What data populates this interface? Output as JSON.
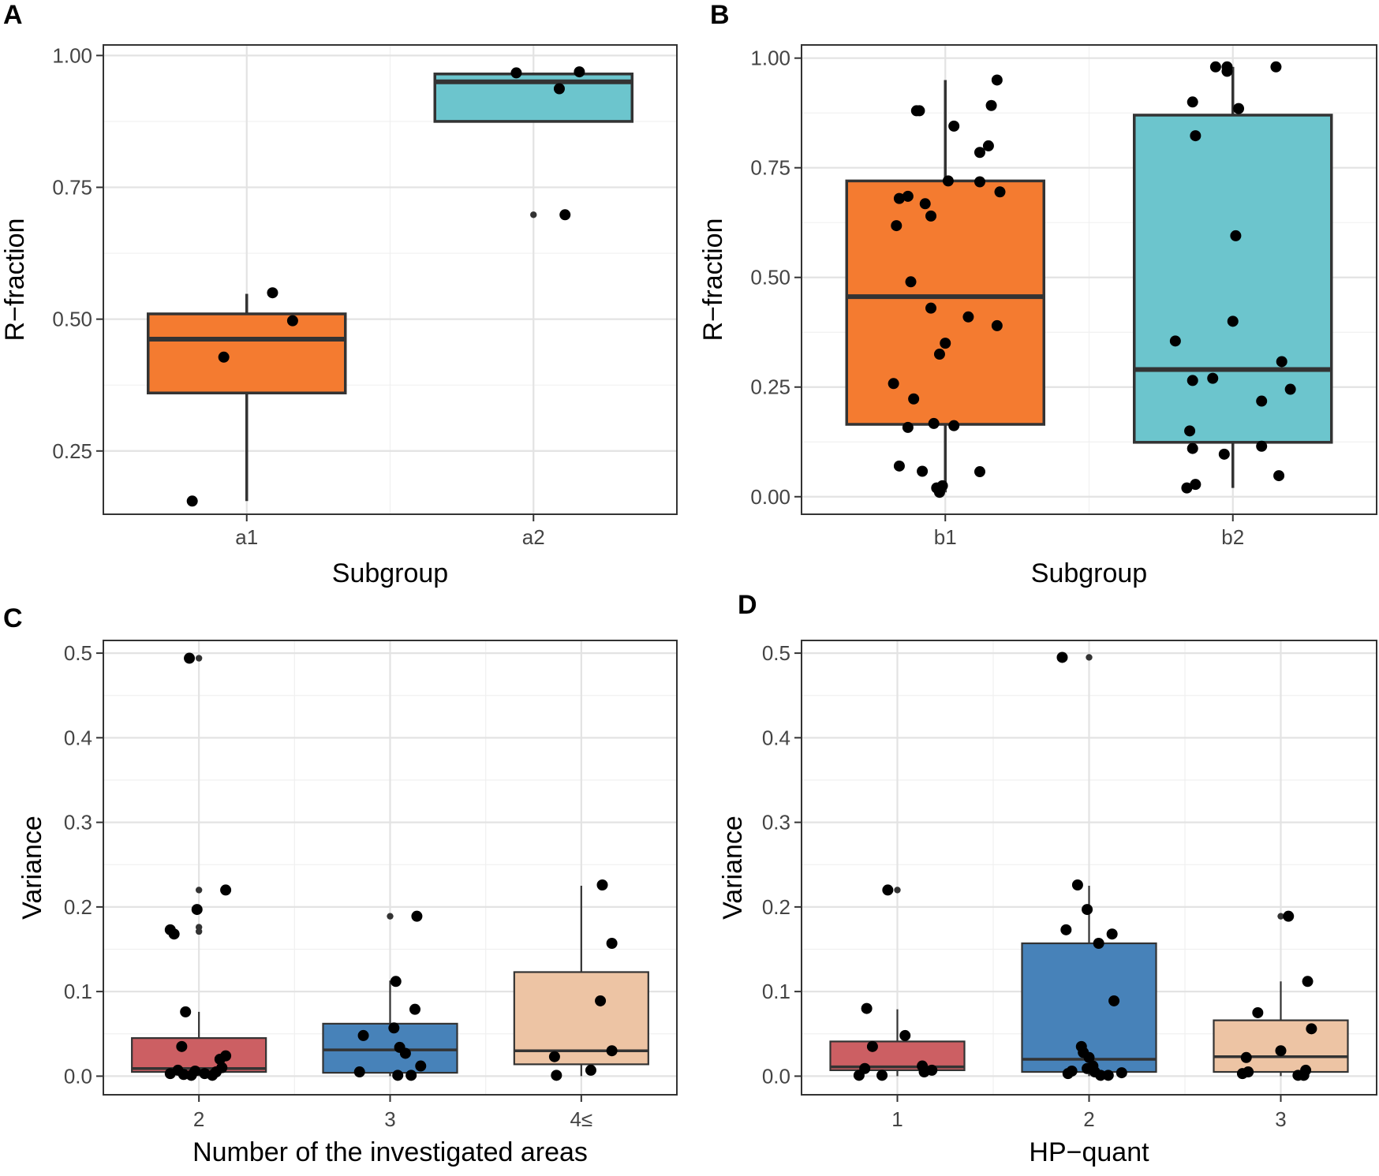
{
  "chart_data": [
    {
      "panel": "A",
      "type": "box",
      "xlabel": "Subgroup",
      "ylabel": "R−fraction",
      "ylim": [
        0.13,
        1.02
      ],
      "yticks": [
        0.25,
        0.5,
        0.75,
        1.0
      ],
      "ytick_labels": [
        "0.25",
        "0.50",
        "0.75",
        "1.00"
      ],
      "grid": true,
      "categories": [
        "a1",
        "a2"
      ],
      "series": [
        {
          "category": "a1",
          "color": "#F47B30",
          "q1": 0.36,
          "median": 0.462,
          "q3": 0.51,
          "whisker_low": 0.155,
          "whisker_high": 0.548,
          "points": [
            [
              -0.19,
              0.155
            ],
            [
              -0.08,
              0.428
            ],
            [
              0.09,
              0.55
            ],
            [
              0.16,
              0.497
            ]
          ],
          "outliers": []
        },
        {
          "category": "a2",
          "color": "#6CC5CD",
          "q1": 0.875,
          "median": 0.95,
          "q3": 0.965,
          "whisker_low": 0.875,
          "whisker_high": 0.965,
          "points": [
            [
              -0.06,
              0.967
            ],
            [
              0.09,
              0.937
            ],
            [
              0.16,
              0.969
            ],
            [
              0.11,
              0.698
            ]
          ],
          "outliers": [
            0.698
          ]
        }
      ]
    },
    {
      "panel": "B",
      "type": "box",
      "xlabel": "Subgroup",
      "ylabel": "R−fraction",
      "ylim": [
        -0.04,
        1.03
      ],
      "yticks": [
        0.0,
        0.25,
        0.5,
        0.75,
        1.0
      ],
      "ytick_labels": [
        "0.00",
        "0.25",
        "0.50",
        "0.75",
        "1.00"
      ],
      "grid": true,
      "categories": [
        "b1",
        "b2"
      ],
      "series": [
        {
          "category": "b1",
          "color": "#F47B30",
          "q1": 0.165,
          "median": 0.456,
          "q3": 0.72,
          "whisker_low": 0.01,
          "whisker_high": 0.95,
          "points": [
            [
              -0.1,
              0.88
            ],
            [
              -0.09,
              0.88
            ],
            [
              0.03,
              0.845
            ],
            [
              0.16,
              0.892
            ],
            [
              0.18,
              0.95
            ],
            [
              0.12,
              0.785
            ],
            [
              0.15,
              0.8
            ],
            [
              0.01,
              0.72
            ],
            [
              0.12,
              0.718
            ],
            [
              0.19,
              0.695
            ],
            [
              -0.13,
              0.685
            ],
            [
              -0.16,
              0.68
            ],
            [
              -0.07,
              0.668
            ],
            [
              -0.05,
              0.64
            ],
            [
              -0.17,
              0.618
            ],
            [
              -0.12,
              0.49
            ],
            [
              -0.05,
              0.43
            ],
            [
              0.08,
              0.41
            ],
            [
              0.18,
              0.39
            ],
            [
              0.0,
              0.35
            ],
            [
              -0.02,
              0.325
            ],
            [
              -0.18,
              0.258
            ],
            [
              -0.11,
              0.223
            ],
            [
              -0.04,
              0.167
            ],
            [
              0.03,
              0.162
            ],
            [
              -0.13,
              0.158
            ],
            [
              -0.16,
              0.07
            ],
            [
              -0.08,
              0.058
            ],
            [
              0.12,
              0.057
            ],
            [
              -0.01,
              0.025
            ],
            [
              -0.03,
              0.02
            ],
            [
              -0.02,
              0.01
            ]
          ],
          "outliers": []
        },
        {
          "category": "b2",
          "color": "#6CC5CD",
          "q1": 0.124,
          "median": 0.29,
          "q3": 0.87,
          "whisker_low": 0.02,
          "whisker_high": 0.98,
          "points": [
            [
              -0.06,
              0.98
            ],
            [
              -0.02,
              0.98
            ],
            [
              -0.02,
              0.97
            ],
            [
              0.15,
              0.98
            ],
            [
              -0.14,
              0.9
            ],
            [
              0.02,
              0.885
            ],
            [
              -0.13,
              0.823
            ],
            [
              0.01,
              0.595
            ],
            [
              0.0,
              0.4
            ],
            [
              -0.2,
              0.355
            ],
            [
              0.17,
              0.308
            ],
            [
              -0.14,
              0.265
            ],
            [
              -0.07,
              0.27
            ],
            [
              0.1,
              0.218
            ],
            [
              0.2,
              0.245
            ],
            [
              -0.15,
              0.15
            ],
            [
              -0.14,
              0.11
            ],
            [
              -0.03,
              0.097
            ],
            [
              0.1,
              0.115
            ],
            [
              0.16,
              0.048
            ],
            [
              -0.13,
              0.028
            ],
            [
              -0.16,
              0.02
            ]
          ],
          "outliers": []
        }
      ]
    },
    {
      "panel": "C",
      "type": "box",
      "xlabel": "Number of the investigated areas",
      "ylabel": "Variance",
      "ylim": [
        -0.022,
        0.515
      ],
      "yticks": [
        0.0,
        0.1,
        0.2,
        0.3,
        0.4,
        0.5
      ],
      "ytick_labels": [
        "0.0",
        "0.1",
        "0.2",
        "0.3",
        "0.4",
        "0.5"
      ],
      "grid": true,
      "categories": [
        "2",
        "3",
        "4≤"
      ],
      "series": [
        {
          "category": "2",
          "color": "#CC5F63",
          "q1": 0.005,
          "median": 0.009,
          "q3": 0.045,
          "whisker_low": 0.0,
          "whisker_high": 0.076,
          "points": [
            [
              -0.05,
              0.494
            ],
            [
              0.14,
              0.22
            ],
            [
              -0.01,
              0.197
            ],
            [
              -0.15,
              0.173
            ],
            [
              -0.13,
              0.168
            ],
            [
              -0.07,
              0.076
            ],
            [
              -0.09,
              0.035
            ],
            [
              -0.15,
              0.003
            ],
            [
              -0.08,
              0.002
            ],
            [
              -0.04,
              0.001
            ],
            [
              0.03,
              0.003
            ],
            [
              0.09,
              0.005
            ],
            [
              0.12,
              0.01
            ],
            [
              0.14,
              0.024
            ],
            [
              0.11,
              0.02
            ],
            [
              -0.11,
              0.007
            ],
            [
              -0.02,
              0.006
            ],
            [
              0.07,
              0.001
            ]
          ],
          "outliers": [
            0.494,
            0.22,
            0.176,
            0.171
          ]
        },
        {
          "category": "3",
          "color": "#4782B9",
          "q1": 0.004,
          "median": 0.031,
          "q3": 0.062,
          "whisker_low": 0.0,
          "whisker_high": 0.113,
          "points": [
            [
              0.14,
              0.189
            ],
            [
              0.03,
              0.112
            ],
            [
              0.13,
              0.079
            ],
            [
              0.02,
              0.057
            ],
            [
              -0.14,
              0.048
            ],
            [
              0.05,
              0.034
            ],
            [
              0.08,
              0.027
            ],
            [
              0.16,
              0.012
            ],
            [
              -0.16,
              0.005
            ],
            [
              0.04,
              0.001
            ],
            [
              0.11,
              0.001
            ]
          ],
          "outliers": [
            0.189
          ]
        },
        {
          "category": "4≤",
          "color": "#EDC4A4",
          "q1": 0.014,
          "median": 0.03,
          "q3": 0.123,
          "whisker_low": 0.0,
          "whisker_high": 0.225,
          "points": [
            [
              0.11,
              0.226
            ],
            [
              0.16,
              0.157
            ],
            [
              0.1,
              0.089
            ],
            [
              0.16,
              0.03
            ],
            [
              -0.14,
              0.023
            ],
            [
              0.05,
              0.007
            ],
            [
              -0.13,
              0.001
            ]
          ],
          "outliers": []
        }
      ]
    },
    {
      "panel": "D",
      "type": "box",
      "xlabel": "HP−quant",
      "ylabel": "Variance",
      "ylim": [
        -0.022,
        0.515
      ],
      "yticks": [
        0.0,
        0.1,
        0.2,
        0.3,
        0.4,
        0.5
      ],
      "ytick_labels": [
        "0.0",
        "0.1",
        "0.2",
        "0.3",
        "0.4",
        "0.5"
      ],
      "grid": true,
      "categories": [
        "1",
        "2",
        "3"
      ],
      "series": [
        {
          "category": "1",
          "color": "#CC5F63",
          "q1": 0.007,
          "median": 0.011,
          "q3": 0.041,
          "whisker_low": 0.0,
          "whisker_high": 0.079,
          "points": [
            [
              -0.05,
              0.22
            ],
            [
              -0.16,
              0.08
            ],
            [
              -0.13,
              0.035
            ],
            [
              0.04,
              0.048
            ],
            [
              0.13,
              0.012
            ],
            [
              0.14,
              0.005
            ],
            [
              0.18,
              0.007
            ],
            [
              -0.2,
              0.001
            ],
            [
              -0.08,
              0.001
            ],
            [
              -0.17,
              0.009
            ]
          ],
          "outliers": [
            0.22
          ]
        },
        {
          "category": "2",
          "color": "#4782B9",
          "q1": 0.005,
          "median": 0.02,
          "q3": 0.157,
          "whisker_low": 0.0,
          "whisker_high": 0.225,
          "points": [
            [
              -0.14,
              0.495
            ],
            [
              -0.06,
              0.226
            ],
            [
              -0.01,
              0.197
            ],
            [
              -0.12,
              0.173
            ],
            [
              0.05,
              0.157
            ],
            [
              0.12,
              0.168
            ],
            [
              0.13,
              0.089
            ],
            [
              -0.04,
              0.035
            ],
            [
              -0.03,
              0.028
            ],
            [
              0.0,
              0.022
            ],
            [
              -0.09,
              0.006
            ],
            [
              -0.11,
              0.003
            ],
            [
              0.03,
              0.005
            ],
            [
              0.06,
              0.001
            ],
            [
              0.1,
              0.001
            ],
            [
              0.17,
              0.004
            ],
            [
              -0.01,
              0.009
            ],
            [
              0.02,
              0.012
            ]
          ],
          "outliers": [
            0.495
          ]
        },
        {
          "category": "3",
          "color": "#EDC4A4",
          "q1": 0.005,
          "median": 0.023,
          "q3": 0.066,
          "whisker_low": 0.0,
          "whisker_high": 0.112,
          "points": [
            [
              0.04,
              0.189
            ],
            [
              0.14,
              0.112
            ],
            [
              0.16,
              0.056
            ],
            [
              -0.12,
              0.075
            ],
            [
              0.0,
              0.03
            ],
            [
              -0.18,
              0.022
            ],
            [
              -0.17,
              0.005
            ],
            [
              -0.2,
              0.003
            ],
            [
              0.13,
              0.007
            ],
            [
              0.12,
              0.001
            ],
            [
              0.09,
              0.001
            ]
          ],
          "outliers": [
            0.189
          ]
        }
      ]
    }
  ]
}
